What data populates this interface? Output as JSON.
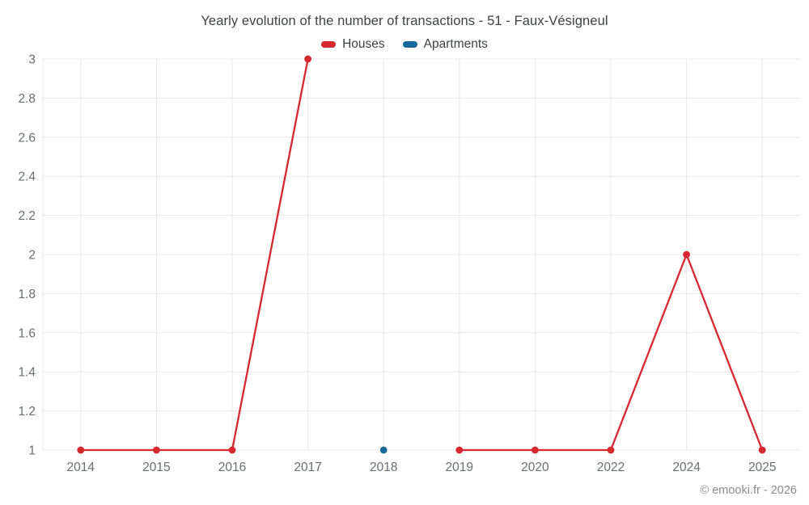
{
  "header": {
    "title": "Yearly evolution of the number of transactions - 51 - Faux-Vésigneul"
  },
  "footer": {
    "copyright": "© emooki.fr - 2026"
  },
  "colors": {
    "houses": "#d7282f",
    "apartments": "#17699b",
    "grid": "#e8e8e8",
    "axis_label": "#6a6d72",
    "title_text": "#3f4146",
    "copyright_text": "#8c8c91"
  },
  "chart_data": {
    "type": "line",
    "title": "Yearly evolution of the number of transactions - 51 - Faux-Vésigneul",
    "xlabel": "",
    "ylabel": "",
    "categories": [
      "2014",
      "2015",
      "2016",
      "2017",
      "2018",
      "2019",
      "2020",
      "2022",
      "2024",
      "2025"
    ],
    "series": [
      {
        "name": "Houses",
        "color": "#d7282f",
        "values": [
          1,
          1,
          1,
          3,
          null,
          1,
          1,
          1,
          2,
          1
        ]
      },
      {
        "name": "Apartments",
        "color": "#17699b",
        "values": [
          null,
          null,
          null,
          null,
          1,
          null,
          null,
          null,
          null,
          null
        ]
      }
    ],
    "ylim": [
      1,
      3
    ],
    "yticks": [
      1,
      1.2,
      1.4,
      1.6,
      1.8,
      2,
      2.2,
      2.4,
      2.6,
      2.8,
      3
    ],
    "ytick_labels": [
      "1",
      "1.2",
      "1.4",
      "1.6",
      "1.8",
      "2",
      "2.2",
      "2.4",
      "2.6",
      "2.8",
      "3"
    ],
    "grid": true,
    "legend_position": "top"
  }
}
